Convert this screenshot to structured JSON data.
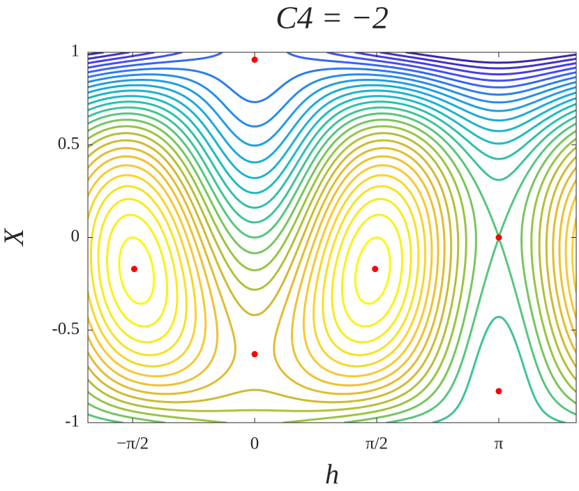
{
  "chart_data": {
    "type": "contour",
    "title": "C4 = −2",
    "x_label": "h",
    "y_label": "X",
    "xlim": [
      -2.146,
      4.138
    ],
    "ylim": [
      -1,
      1
    ],
    "xticks": [
      {
        "value": -1.5708,
        "label": "−π/2"
      },
      0,
      {
        "value": 1.5708,
        "label": "π/2"
      },
      {
        "value": 3.1416,
        "label": "π"
      }
    ],
    "yticks": [
      -1,
      -0.5,
      0,
      0.5,
      1
    ],
    "levels": [
      -1.95,
      -1.8,
      -1.65,
      -1.5,
      -1.35,
      -1.2,
      -1.05,
      -0.9,
      -0.75,
      -0.6,
      -0.45,
      -0.3,
      -0.15,
      0,
      0.15,
      0.3,
      0.45,
      0.6,
      0.75,
      0.9,
      1.05,
      1.2,
      1.35,
      1.5,
      1.65,
      1.8
    ],
    "colormap": [
      "#3e26a8",
      "#4743f8",
      "#2c7cf2",
      "#1ca6de",
      "#1cbcc0",
      "#47c68c",
      "#97c540",
      "#dcb92d",
      "#f9c831",
      "#f7e81c",
      "#f9fb0e"
    ],
    "points": {
      "color": "#ff0000",
      "x": [
        0,
        -1.55,
        1.55,
        0,
        3.1416,
        3.1416
      ],
      "y": [
        0.96,
        -0.17,
        -0.17,
        -0.63,
        0,
        -0.83
      ]
    }
  }
}
